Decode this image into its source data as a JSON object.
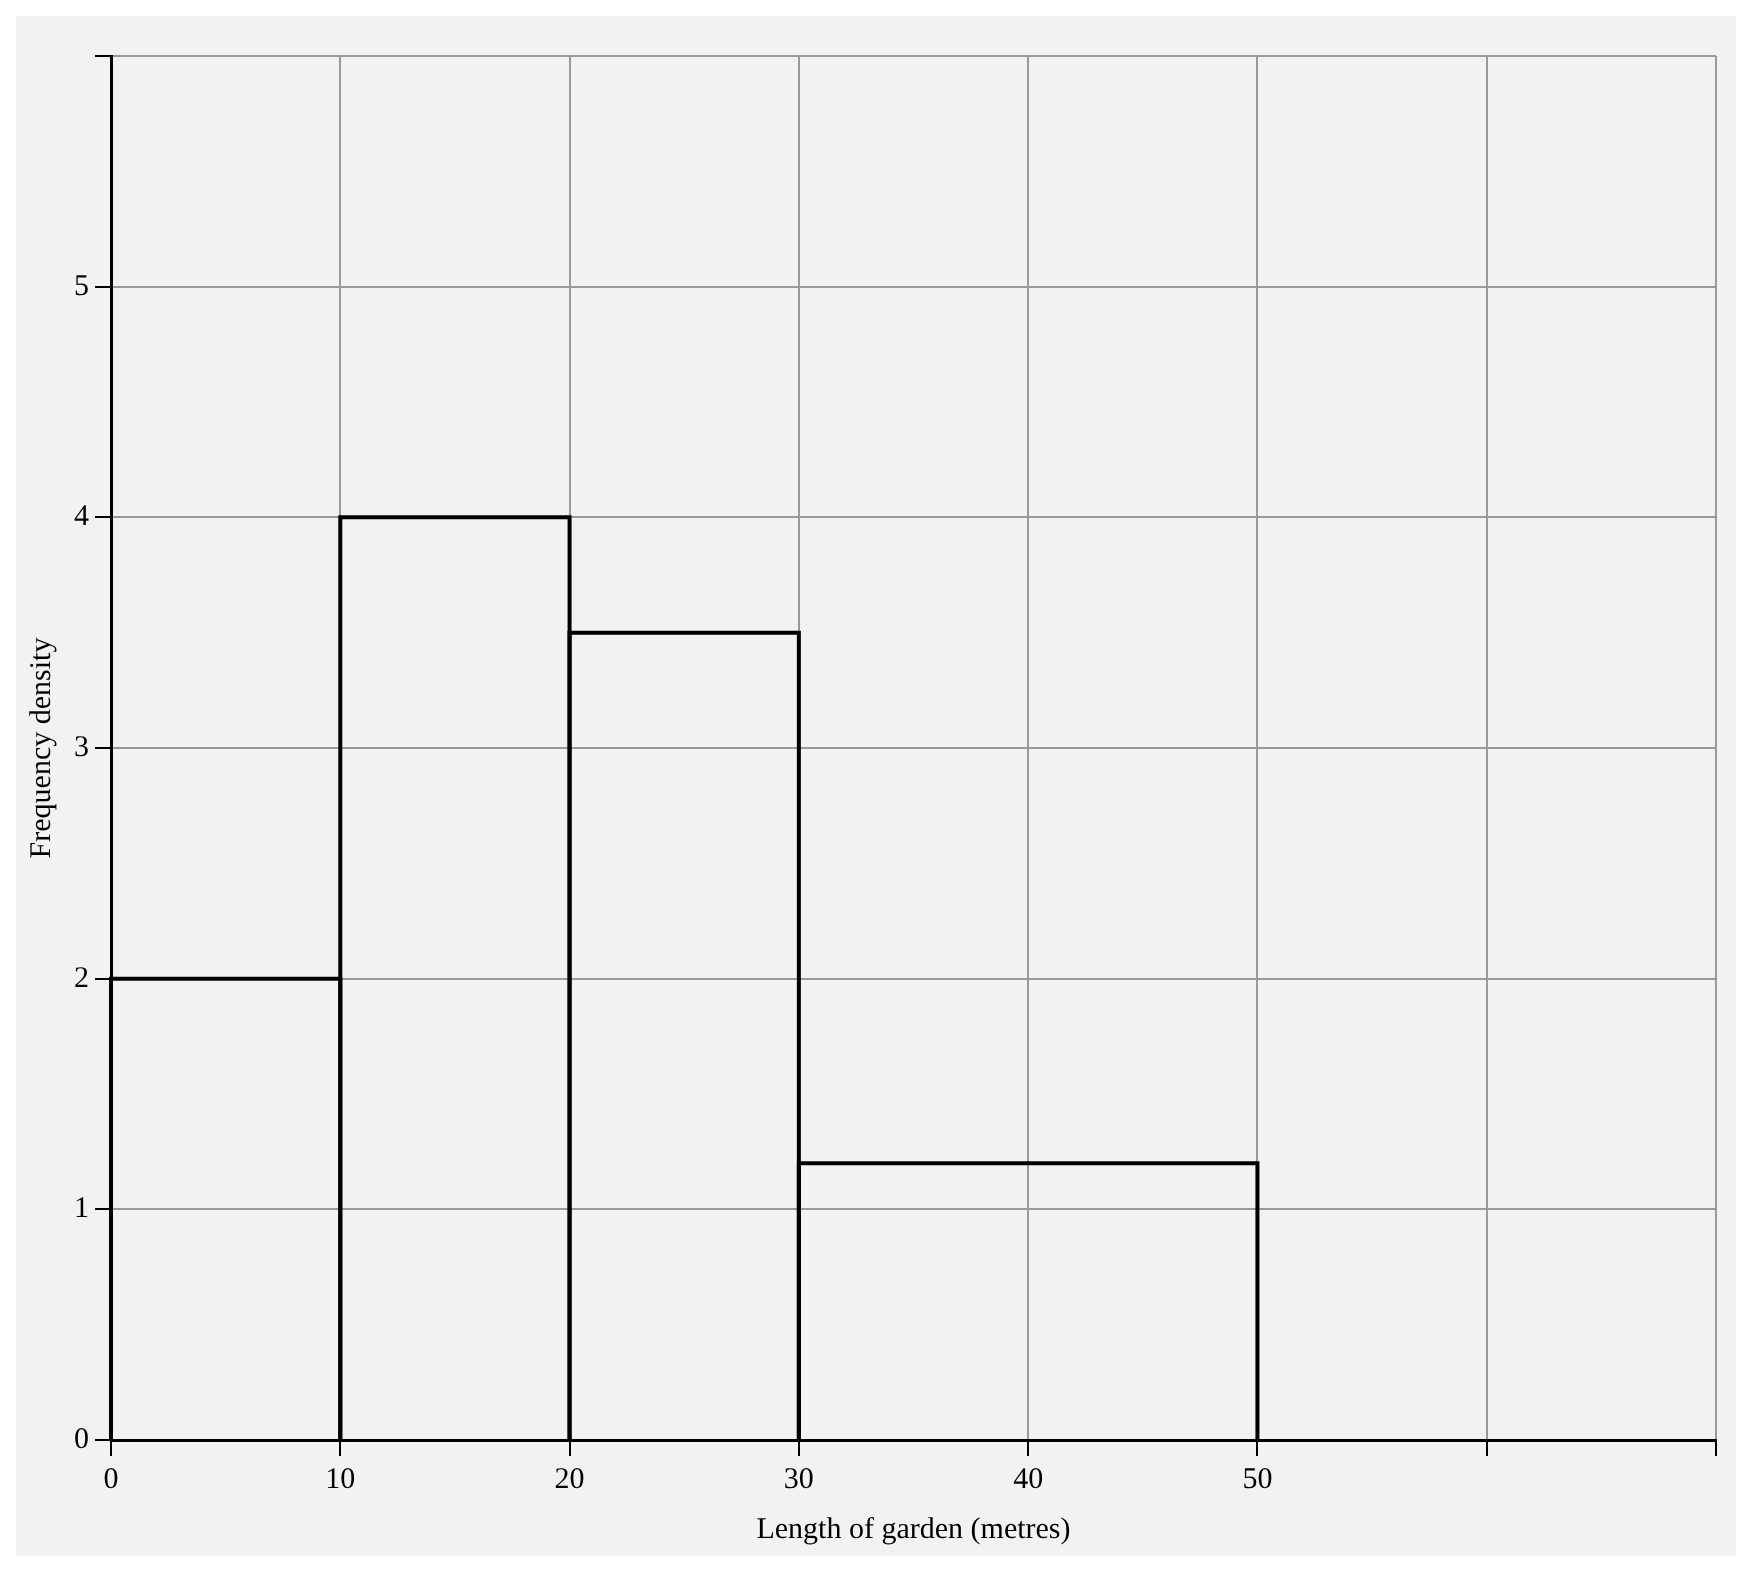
{
  "chart_data": {
    "type": "histogram",
    "xlabel": "Length of garden (metres)",
    "ylabel": "Frequency density",
    "bins": [
      0,
      10,
      20,
      30,
      50
    ],
    "values": [
      2,
      4,
      3.5,
      1.2
    ],
    "color": "#000000",
    "xlim": [
      0,
      70
    ],
    "ylim": [
      0,
      6
    ],
    "xticks": [
      0,
      10,
      20,
      30,
      40,
      50,
      {
        "value": 60,
        "label": null
      },
      {
        "value": 70,
        "label": null
      }
    ],
    "yticks": [
      0,
      1,
      2,
      3,
      4,
      5,
      {
        "value": 6,
        "label": null
      }
    ],
    "grid": true
  }
}
